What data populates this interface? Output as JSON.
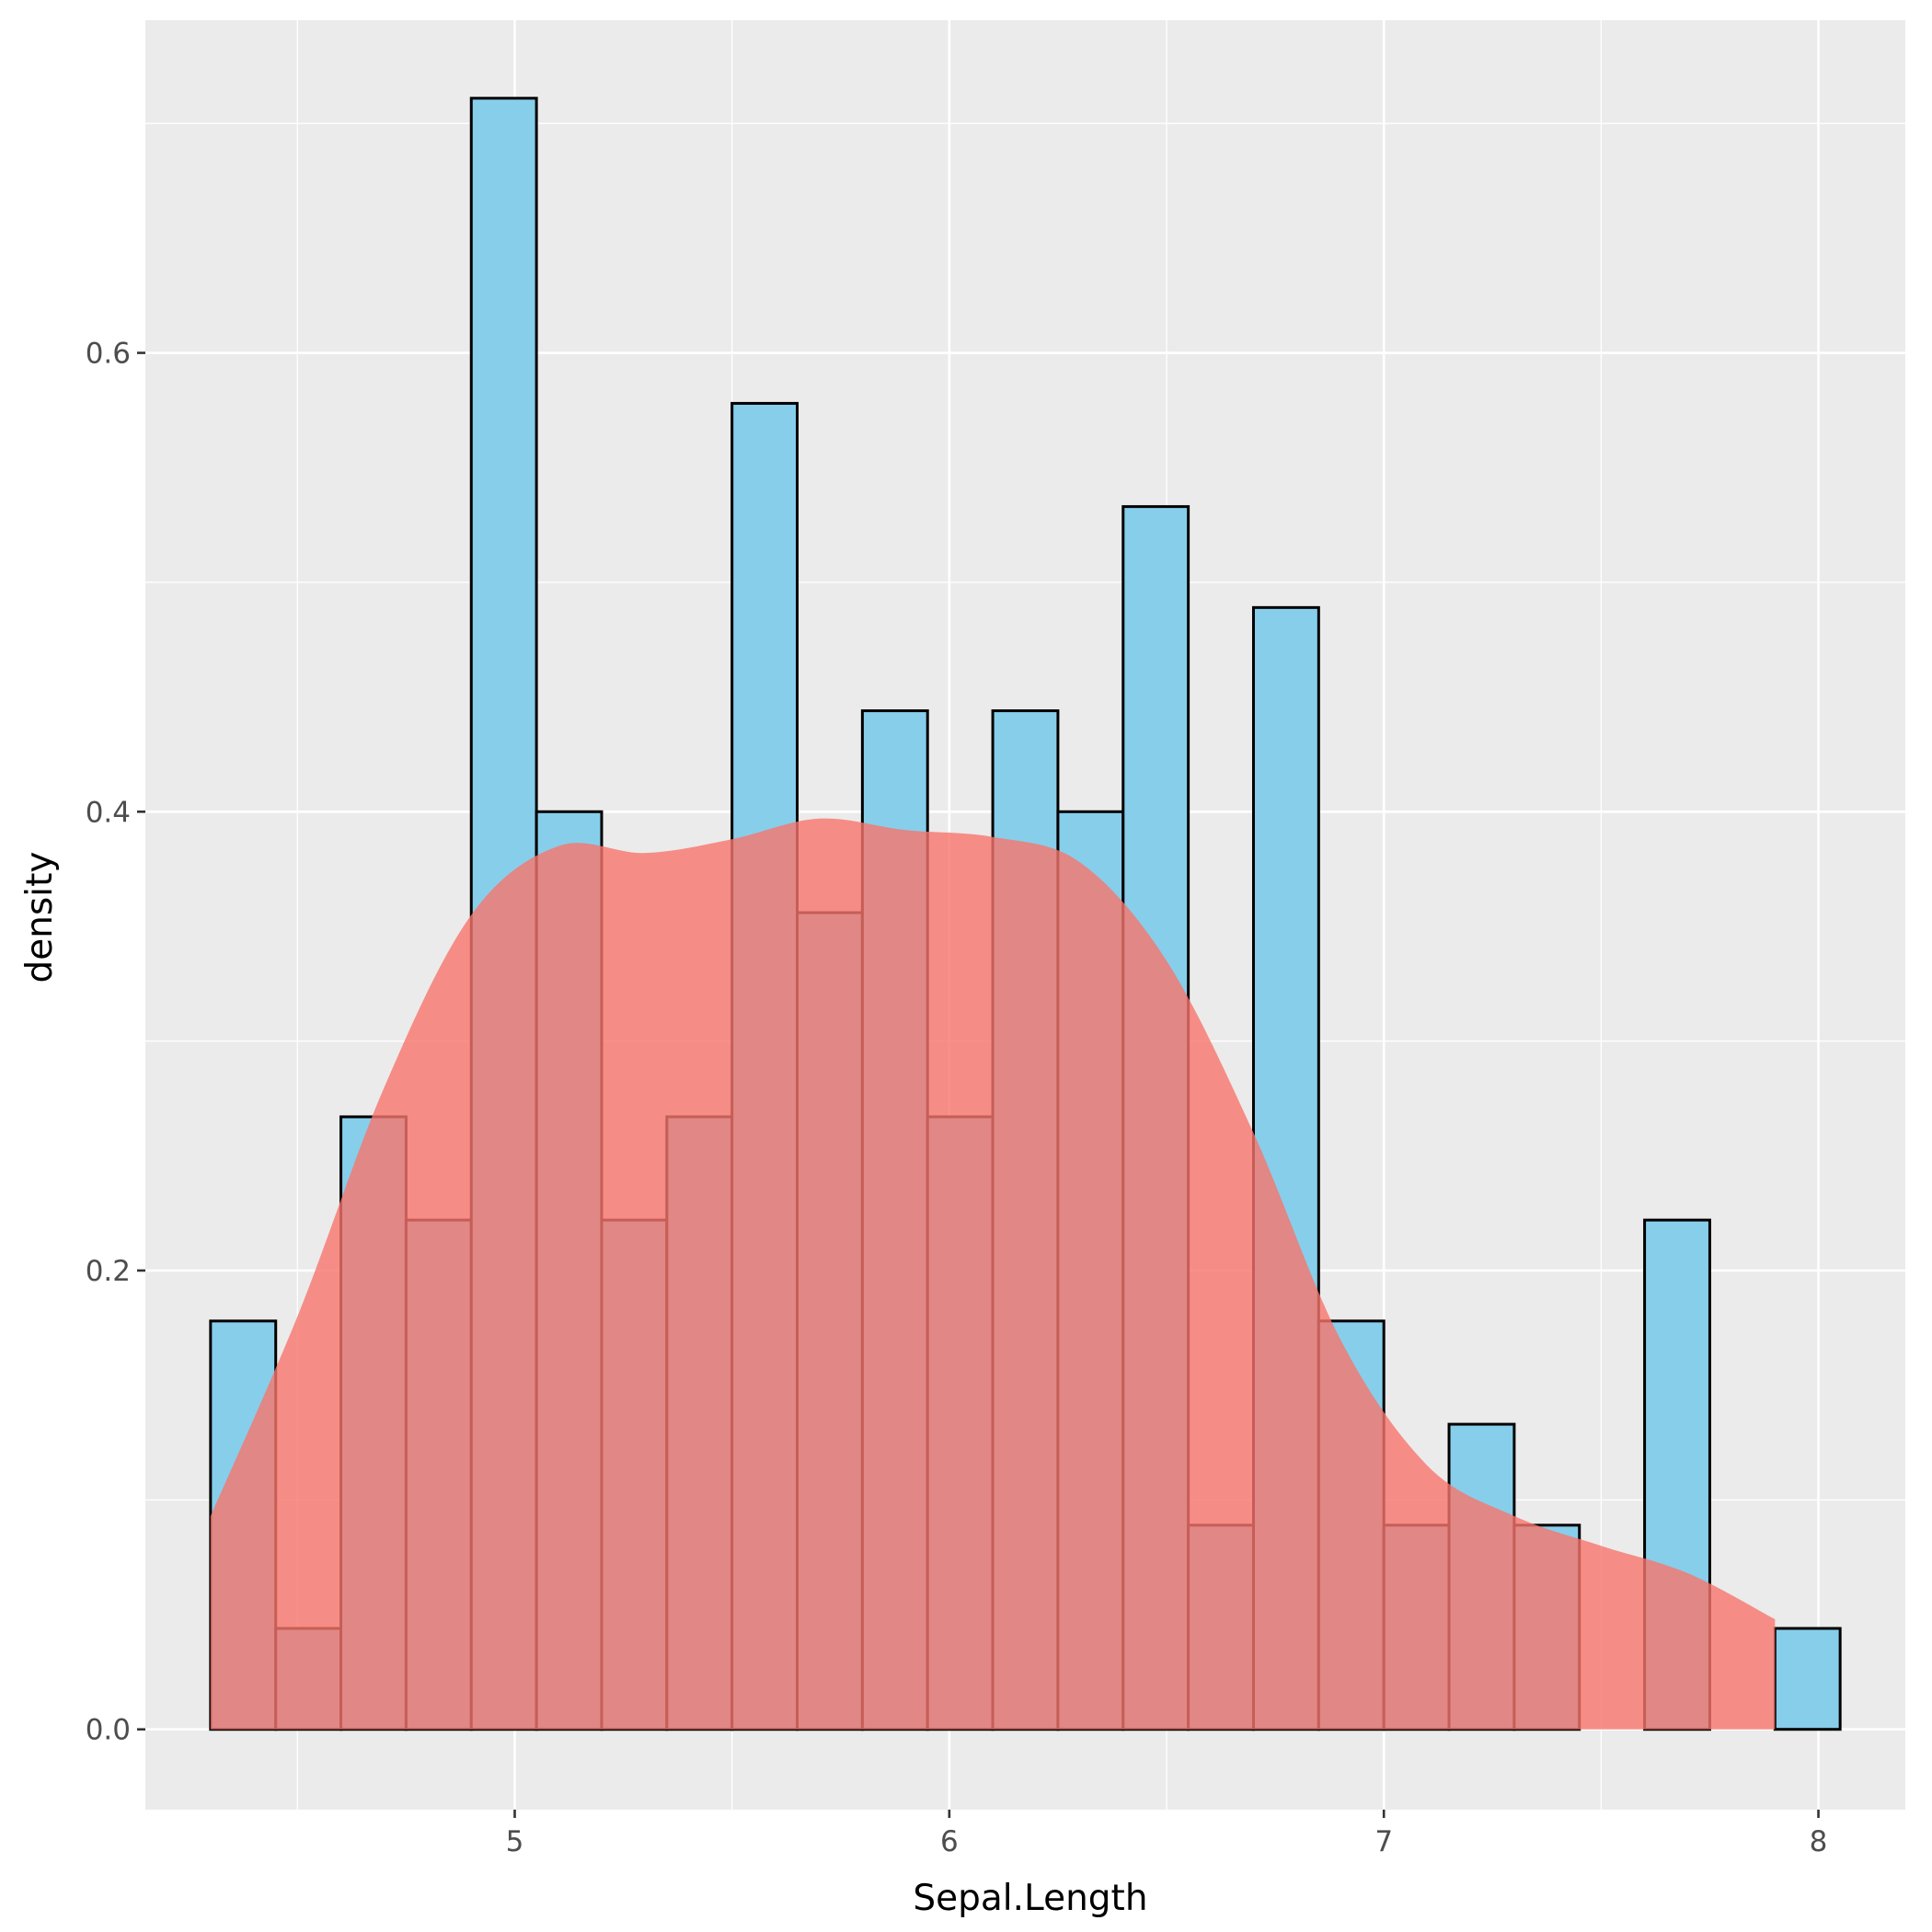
{
  "chart_data": {
    "type": "bar",
    "subtype": "histogram with density overlay",
    "xlabel": "Sepal.Length",
    "ylabel": "density",
    "xlim": [
      4.15,
      8.2
    ],
    "ylim": [
      -0.035,
      0.745
    ],
    "x_ticks": [
      5,
      6,
      7,
      8
    ],
    "x_tick_labels": [
      "5",
      "6",
      "7",
      "8"
    ],
    "y_ticks": [
      0.0,
      0.2,
      0.4,
      0.6
    ],
    "y_tick_labels": [
      "0.0",
      "0.2",
      "0.4",
      "0.6"
    ],
    "grid": true,
    "legend": "none",
    "bin_width": 0.15,
    "bin_starts": [
      4.3,
      4.45,
      4.6,
      4.75,
      4.9,
      5.05,
      5.2,
      5.35,
      5.5,
      5.65,
      5.8,
      5.95,
      6.1,
      6.25,
      6.4,
      6.55,
      6.7,
      6.85,
      7.0,
      7.15,
      7.3,
      7.45,
      7.6,
      7.75,
      7.9
    ],
    "histogram_values": [
      0.178,
      0.044,
      0.267,
      0.222,
      0.711,
      0.4,
      0.222,
      0.267,
      0.578,
      0.356,
      0.444,
      0.267,
      0.444,
      0.4,
      0.533,
      0.089,
      0.489,
      0.178,
      0.089,
      0.133,
      0.089,
      0.0,
      0.222,
      0.0,
      0.044
    ],
    "density_x": [
      4.3,
      4.5,
      4.7,
      4.9,
      5.1,
      5.3,
      5.5,
      5.7,
      5.9,
      6.1,
      6.3,
      6.5,
      6.7,
      6.9,
      7.1,
      7.3,
      7.5,
      7.7,
      7.9
    ],
    "density_y": [
      0.093,
      0.18,
      0.28,
      0.355,
      0.385,
      0.382,
      0.388,
      0.397,
      0.392,
      0.389,
      0.378,
      0.335,
      0.26,
      0.17,
      0.115,
      0.093,
      0.08,
      0.068,
      0.048
    ],
    "colors": {
      "histogram_fill": "#87CEEB",
      "histogram_stroke": "#000000",
      "density_fill": "#F8766D",
      "panel_background": "#EBEBEB",
      "grid": "#FFFFFF"
    }
  }
}
